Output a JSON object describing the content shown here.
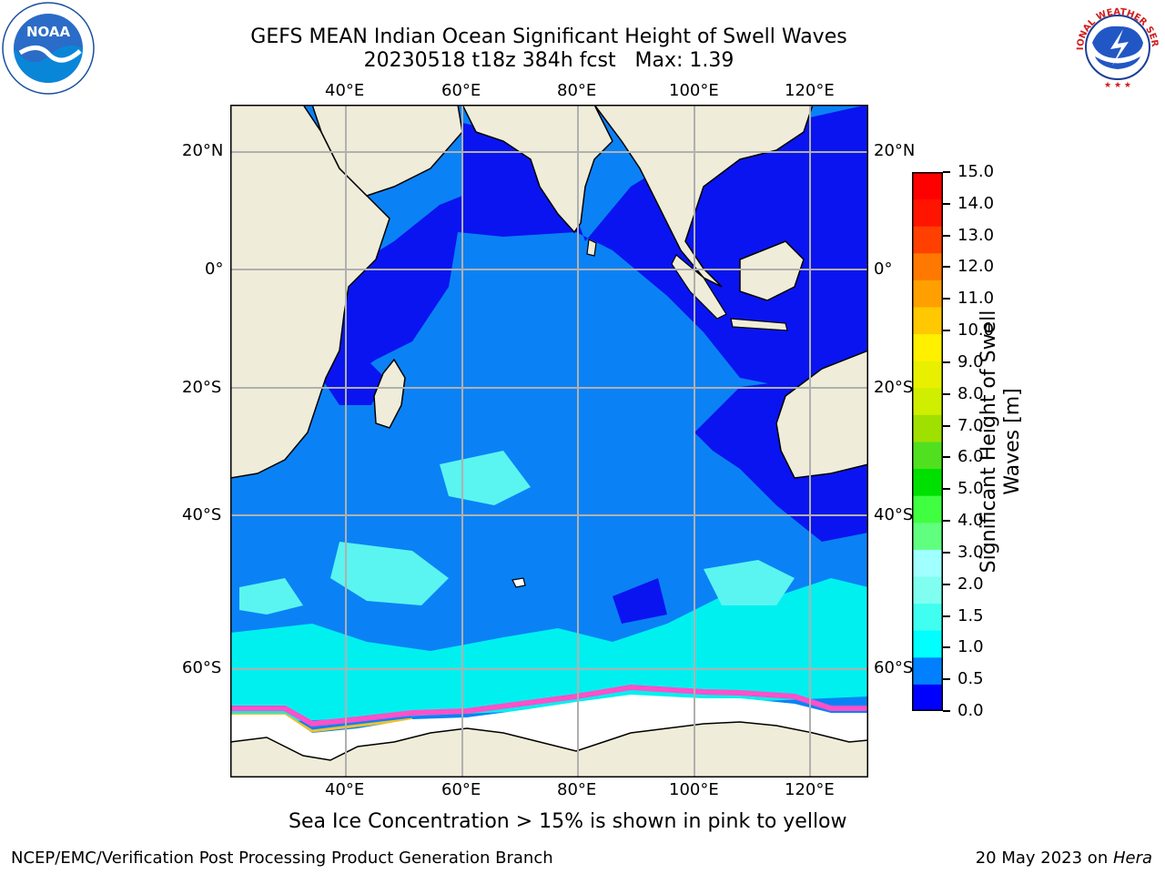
{
  "header": {
    "title_line1": "GEFS MEAN Indian Ocean Significant Height of Swell Waves",
    "title_line2": "20230518 t18z 384h fcst   Max: 1.39"
  },
  "logos": {
    "left": {
      "icon": "noaa-logo",
      "text": "NOAA"
    },
    "right": {
      "icon": "national-weather-service-logo",
      "text": "NATIONAL WEATHER SERVICE"
    }
  },
  "map": {
    "lon_ticks": [
      "40°E",
      "60°E",
      "80°E",
      "100°E",
      "120°E"
    ],
    "lat_ticks": [
      "20°N",
      "0°",
      "20°S",
      "40°S",
      "60°S"
    ],
    "colors": {
      "land": "#efecd9",
      "ocean_0_05": "#0a14f0",
      "ocean_05_1": "#0a82f5",
      "ocean_1_15": "#00f0f0",
      "ocean_15_2": "#5af5f0",
      "sea_ice_edge": "#ff50c8",
      "ice": "#ffffff"
    }
  },
  "colorbar": {
    "label_line1": "Significant Height of Swell",
    "label_line2": "Waves [m]",
    "ticks": [
      "15.0",
      "14.0",
      "13.0",
      "12.0",
      "11.0",
      "10.0",
      "9.0",
      "8.0",
      "7.0",
      "6.0",
      "5.0",
      "4.0",
      "3.0",
      "2.0",
      "1.5",
      "1.0",
      "0.5",
      "0.0"
    ],
    "colors": [
      "#0000ff",
      "#0080ff",
      "#00ffff",
      "#40fff0",
      "#80fff0",
      "#a0ffff",
      "#60ff80",
      "#40ff40",
      "#00e000",
      "#50e020",
      "#a0e000",
      "#d0ee00",
      "#e8f000",
      "#fff000",
      "#ffc800",
      "#ffa000",
      "#ff7800",
      "#ff4000",
      "#ff1400",
      "#ff0000"
    ]
  },
  "note": "Sea Ice Concentration > 15% is shown in pink to yellow",
  "footer": {
    "left": "NCEP/EMC/Verification Post Processing Product Generation Branch",
    "right_prefix": "20 May 2023 on ",
    "right_host": "Hera"
  }
}
